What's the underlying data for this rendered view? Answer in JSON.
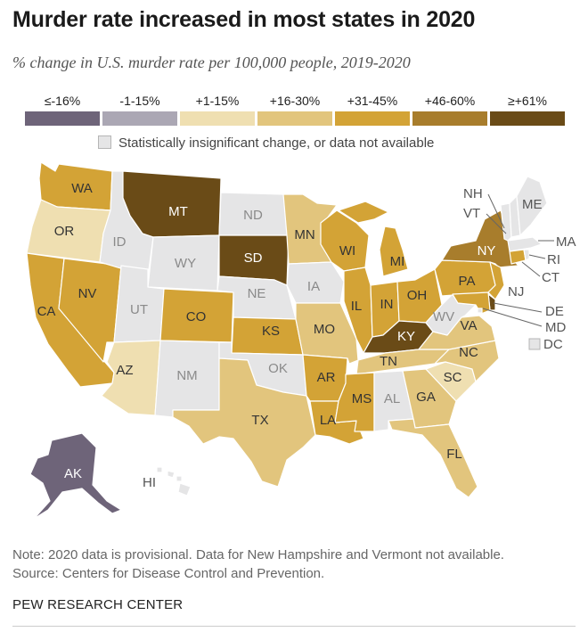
{
  "title": "Murder rate increased in most states in 2020",
  "subtitle": "% change in U.S. murder rate per 100,000 people, 2019-2020",
  "legend": [
    {
      "label": "≤-16%",
      "color": "#6e6479"
    },
    {
      "label": "-1-15%",
      "color": "#aba7b4"
    },
    {
      "label": "+1-15%",
      "color": "#efdfb1"
    },
    {
      "label": "+16-30%",
      "color": "#e2c57d"
    },
    {
      "label": "+31-45%",
      "color": "#d3a336"
    },
    {
      "label": "+46-60%",
      "color": "#a87d2c"
    },
    {
      "label": "≥+61%",
      "color": "#6a4b17"
    }
  ],
  "na_label": "Statistically insignificant change, or data not available",
  "na_color": "#e5e5e6",
  "states": {
    "AK": "≤-16%",
    "WA": "+31-45%",
    "OR": "+1-15%",
    "CA": "+31-45%",
    "NV": "+31-45%",
    "ID": "na",
    "MT": "≥+61%",
    "WY": "na",
    "UT": "na",
    "AZ": "+1-15%",
    "CO": "+31-45%",
    "NM": "na",
    "ND": "na",
    "SD": "≥+61%",
    "NE": "na",
    "KS": "+31-45%",
    "OK": "na",
    "TX": "+16-30%",
    "MN": "+16-30%",
    "IA": "na",
    "MO": "+16-30%",
    "AR": "+31-45%",
    "LA": "+31-45%",
    "WI": "+31-45%",
    "IL": "+31-45%",
    "MI": "+31-45%",
    "IN": "+31-45%",
    "OH": "+31-45%",
    "KY": "≥+61%",
    "TN": "+16-30%",
    "MS": "+31-45%",
    "AL": "na",
    "GA": "+16-30%",
    "FL": "+16-30%",
    "SC": "+1-15%",
    "NC": "+16-30%",
    "VA": "+16-30%",
    "WV": "na",
    "PA": "+31-45%",
    "NY": "+46-60%",
    "ME": "na",
    "NH": "na",
    "VT": "na",
    "MA": "na",
    "RI": "na",
    "CT": "+31-45%",
    "NJ": "+31-45%",
    "DE": "≥+61%",
    "MD": "+31-45%",
    "DC": "na",
    "HI": "na"
  },
  "callout_labels": {
    "NH": "NH",
    "VT": "VT",
    "ME": "ME",
    "MA": "MA",
    "RI": "RI",
    "CT": "CT",
    "NJ": "NJ",
    "DE": "DE",
    "MD": "MD",
    "DC": "DC"
  },
  "note": "Note: 2020 data is provisional. Data for New Hampshire and Vermont not available.",
  "source": "Source: Centers for Disease Control and Prevention.",
  "brand": "PEW RESEARCH CENTER"
}
